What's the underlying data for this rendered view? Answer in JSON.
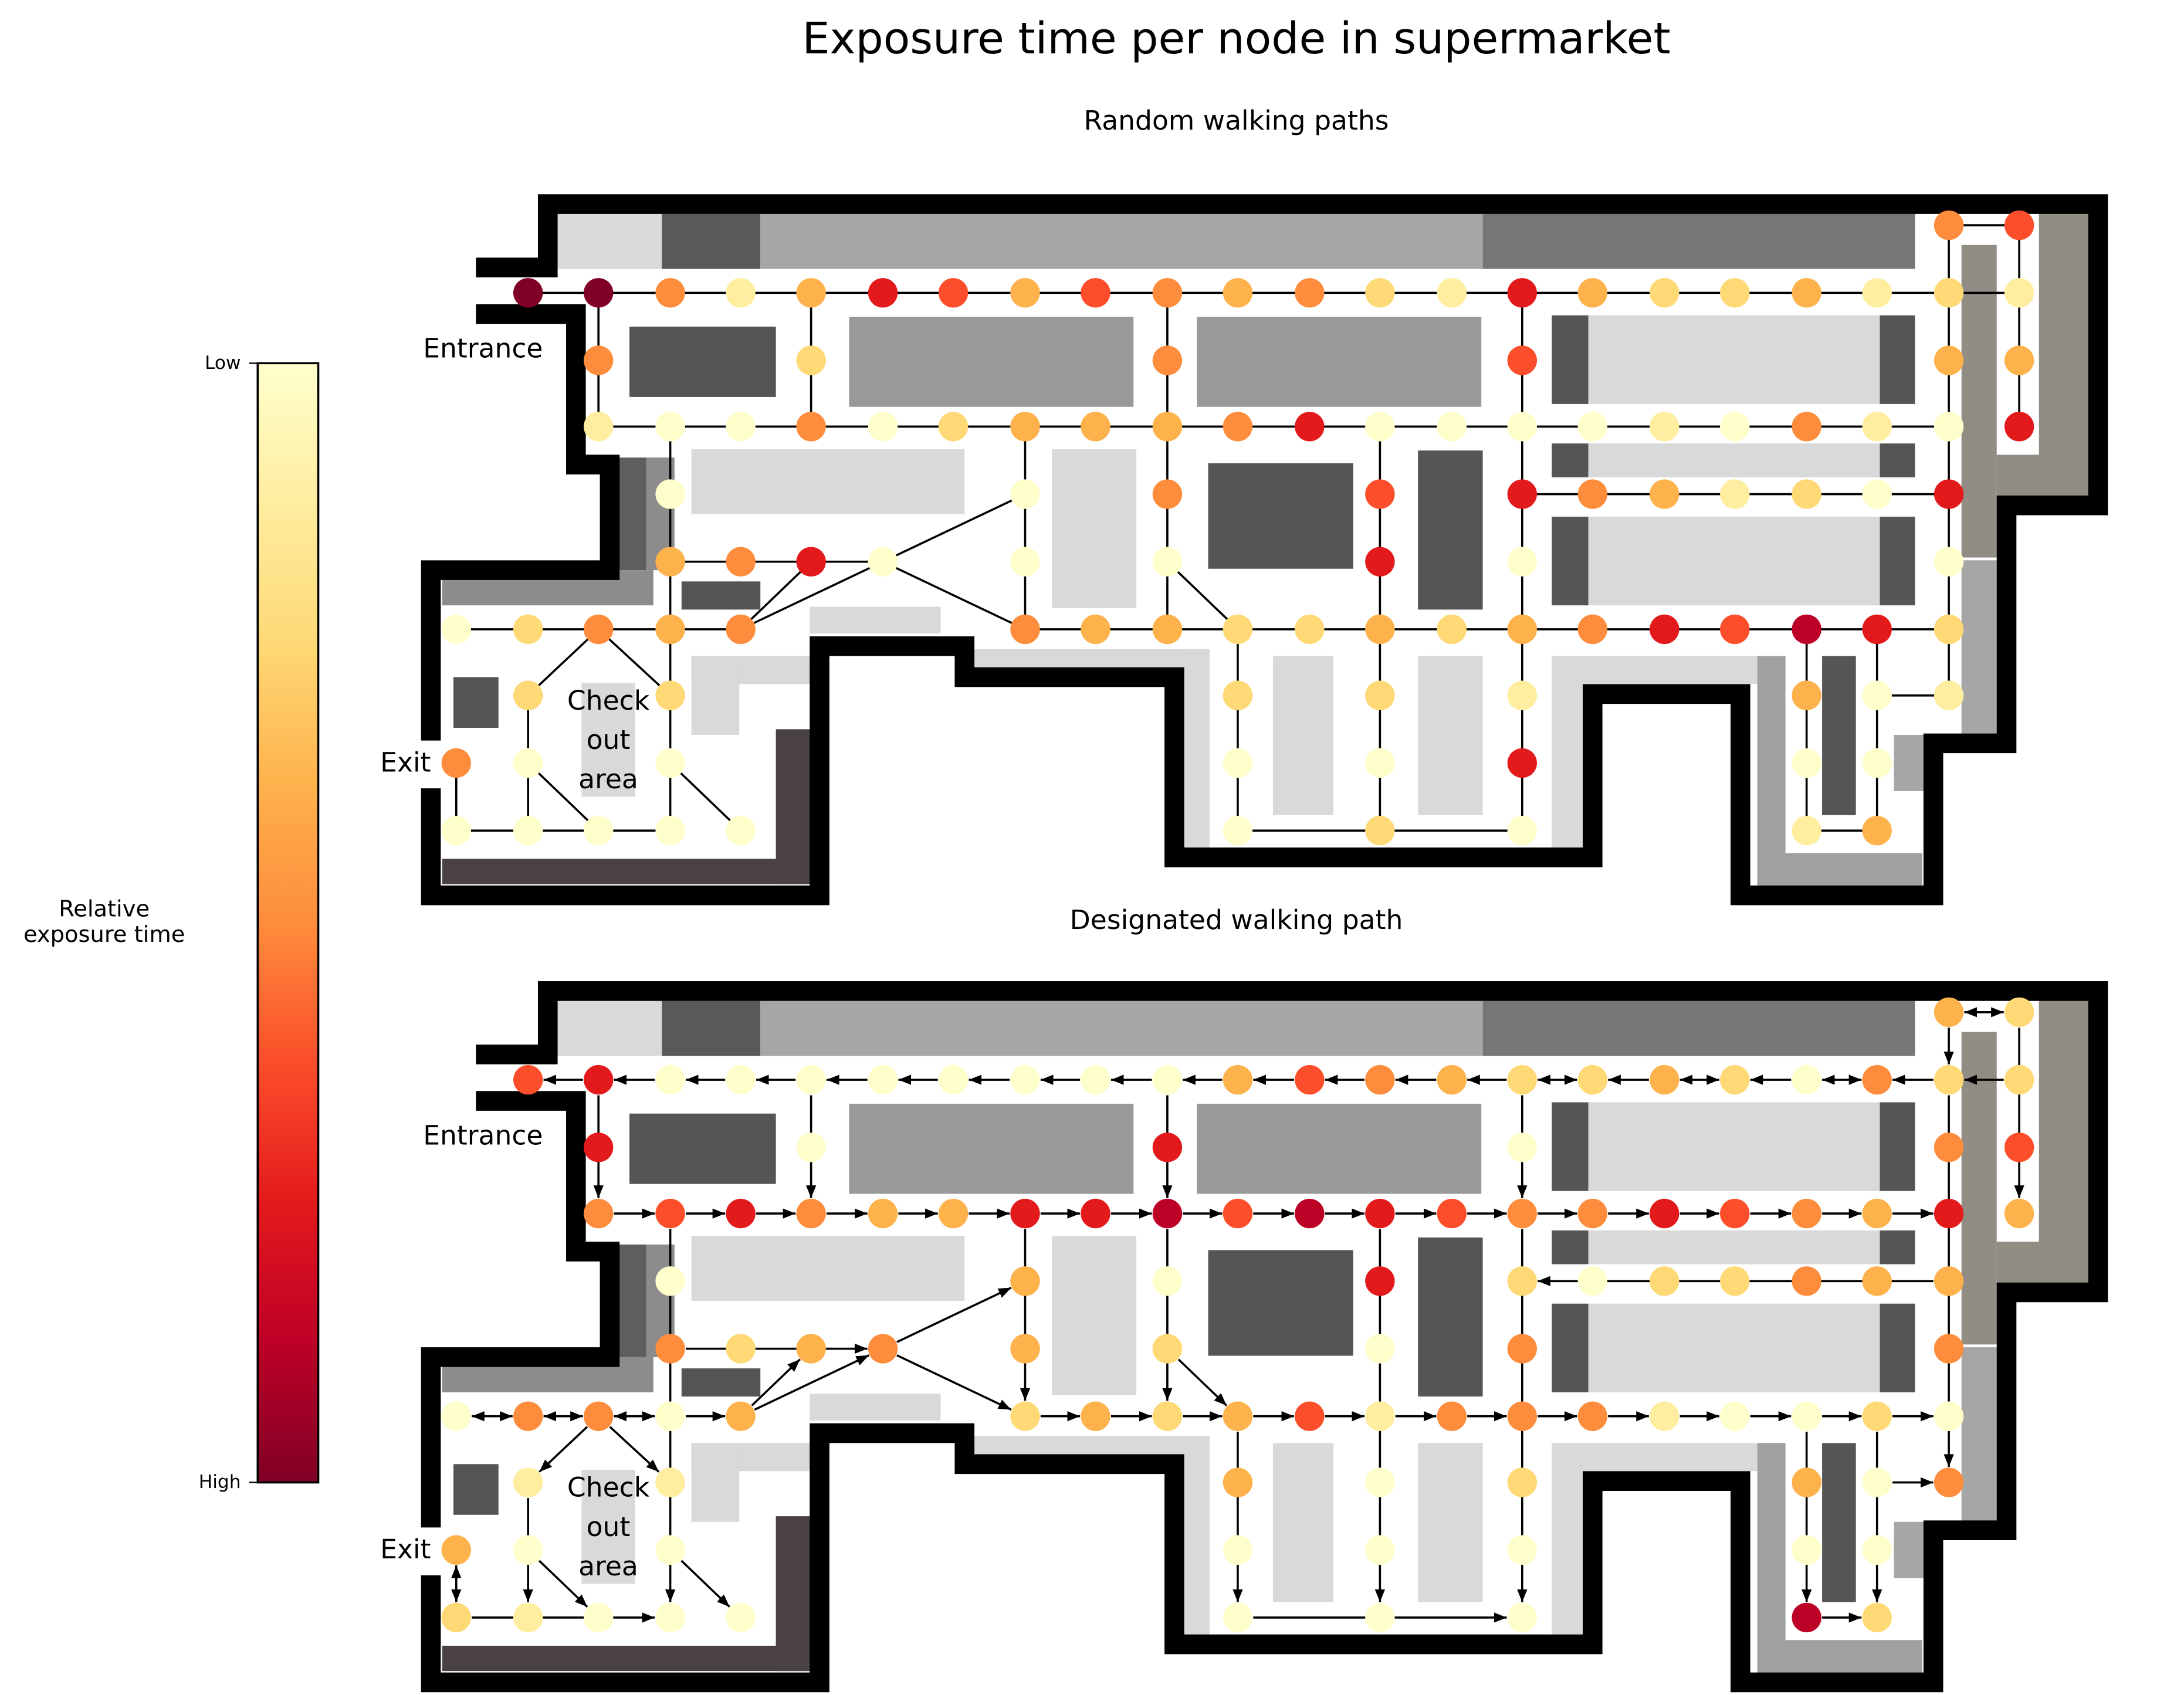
{
  "title": "Exposure time per node in supermarket",
  "panel_top_title": "Random walking paths",
  "panel_bottom_title": "Designated walking path",
  "labels": {
    "entrance": "Entrance",
    "exit": "Exit",
    "checkout_lines": [
      "Check",
      "out",
      "area"
    ]
  },
  "colorbar": {
    "label_lines": [
      "Relative",
      "exposure time"
    ],
    "tick_low": "Low",
    "tick_high": "High",
    "colors": [
      "#ffffcc",
      "#ffeda0",
      "#fed976",
      "#feb24c",
      "#fd8d3c",
      "#fc4e2a",
      "#e31a1c",
      "#bd0026",
      "#800026"
    ]
  },
  "node_colors": {
    "0": "#ffffcc",
    "1": "#ffeda0",
    "2": "#fed976",
    "3": "#feb24c",
    "4": "#fd8d3c",
    "5": "#fc4e2a",
    "6": "#e31a1c",
    "7": "#bd0026",
    "8": "#800026"
  },
  "panels": [
    {
      "id": "random",
      "levels": [
        8,
        8,
        4,
        1,
        3,
        6,
        5,
        3,
        5,
        4,
        3,
        4,
        2,
        1,
        6,
        3,
        2,
        2,
        3,
        1,
        2,
        1,
        4,
        5,
        4,
        2,
        4,
        5,
        3,
        3,
        1,
        0,
        0,
        4,
        0,
        2,
        3,
        3,
        3,
        4,
        6,
        0,
        0,
        0,
        0,
        1,
        0,
        4,
        1,
        0,
        6,
        0,
        0,
        4,
        5,
        6,
        4,
        3,
        1,
        2,
        0,
        6,
        3,
        4,
        6,
        0,
        0,
        0,
        6,
        0,
        0,
        0,
        0,
        2,
        4,
        3,
        4,
        4,
        3,
        3,
        2,
        2,
        3,
        2,
        3,
        4,
        6,
        5,
        7,
        6,
        2,
        2,
        2,
        2,
        2,
        2,
        1,
        3,
        0,
        1,
        4,
        0,
        0,
        0,
        0,
        6,
        0,
        0,
        0,
        2,
        0,
        1,
        3,
        0,
        0,
        0,
        0,
        0,
        0,
        0,
        0,
        0,
        0,
        2,
        1,
        1,
        3,
        2,
        1,
        5,
        5,
        2,
        4,
        1
      ]
    },
    {
      "id": "designated",
      "levels": [
        5,
        6,
        0,
        0,
        0,
        0,
        0,
        0,
        0,
        0,
        3,
        5,
        4,
        3,
        2,
        2,
        3,
        2,
        0,
        4,
        2,
        2,
        3,
        2,
        6,
        0,
        6,
        0,
        4,
        5,
        4,
        5,
        6,
        4,
        3,
        3,
        6,
        6,
        7,
        5,
        7,
        6,
        5,
        4,
        4,
        6,
        5,
        4,
        3,
        6,
        3,
        0,
        3,
        0,
        6,
        2,
        0,
        2,
        2,
        4,
        3,
        3,
        4,
        2,
        3,
        4,
        3,
        2,
        0,
        4,
        4,
        0,
        0,
        4,
        4,
        0,
        3,
        2,
        3,
        2,
        3,
        5,
        1,
        4,
        4,
        4,
        1,
        0,
        0,
        2,
        0,
        0,
        1,
        1,
        3,
        0,
        2,
        3,
        0,
        4,
        3,
        0,
        0,
        0,
        0,
        0,
        0,
        0,
        0,
        0,
        0,
        7,
        2,
        2,
        1,
        0,
        0,
        0,
        4,
        2,
        0,
        4,
        0,
        3,
        4,
        2,
        3,
        4,
        4,
        3,
        3,
        4,
        3,
        2
      ]
    }
  ]
}
